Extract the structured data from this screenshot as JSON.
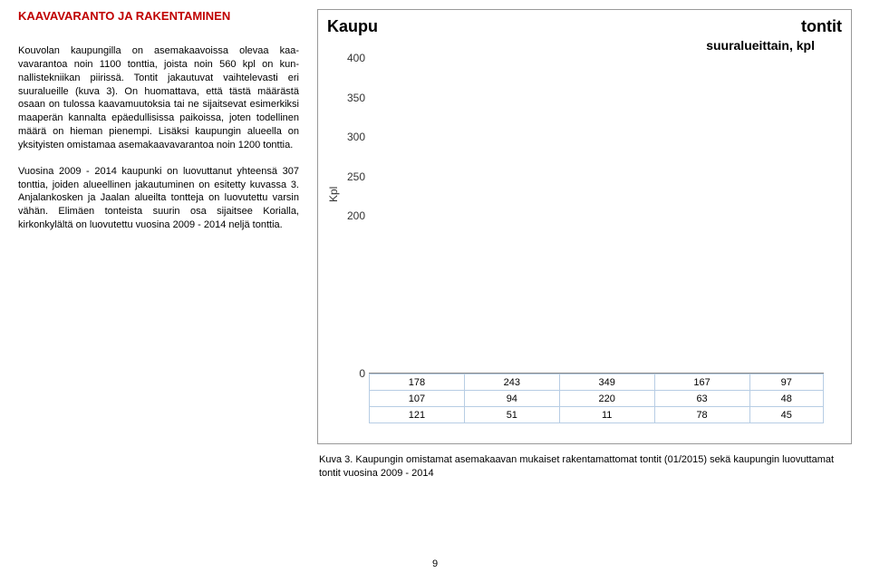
{
  "heading": {
    "text": "KAAVAVARANTO JA RAKENTAMINEN",
    "color": "#c00000"
  },
  "paragraphs": {
    "p1": "Kouvolan kaupungilla on asemakaavoissa olevaa kaa­vavarantoa noin 1100 tonttia, joista noin 560 kpl on kun­nallistekniikan piirissä. Tontit jakautuvat vaihtelevasti eri suuralueille (kuva 3). On huomattava, että tästä määräs­tä osaan on tulossa kaavamuutoksia tai ne sijaitsevat esimerkiksi maaperän kannalta epäedullisissa paikoissa, joten todellinen määrä on hieman pienempi. Lisäksi kau­pungin alueella on yksityisten omistamaa asemakaava­varantoa noin 1200 tonttia.",
    "p2": "Vuosina 2009 - 2014 kaupunki on luovuttanut yhteensä 307 tonttia, joiden alueellinen jakautuminen on esitetty kuvassa 3. Anjalankosken ja Jaalan alueilta tontteja on luovutettu varsin vähän. Elimäen tonteista suurin osa sijaitsee Korialla, kirkonkylältä on luovutettu vuosina 2009 - 2014 neljä tonttia."
  },
  "chart": {
    "title_left": "Kaupu",
    "title_right": "tontit",
    "subtitle": "suuralueittain, kpl",
    "ylabel": "Kpl",
    "ymin": 0,
    "ymax": 400,
    "yticks": [
      0,
      200,
      250,
      300,
      350,
      400
    ],
    "grid_color": "#d9d9d9",
    "table_border": "#b7cde4",
    "rows": [
      [
        "178",
        "243",
        "349",
        "167",
        "97"
      ],
      [
        "107",
        "94",
        "220",
        "63",
        "48"
      ],
      [
        "121",
        "51",
        "11",
        "78",
        "45"
      ]
    ]
  },
  "caption": "Kuva 3. Kaupungin omistamat asemakaavan mukaiset rakentamattomat tontit (01/2015) sekä kaupungin luovuttamat tontit vuosina 2009 - 2014",
  "pagenum": "9"
}
